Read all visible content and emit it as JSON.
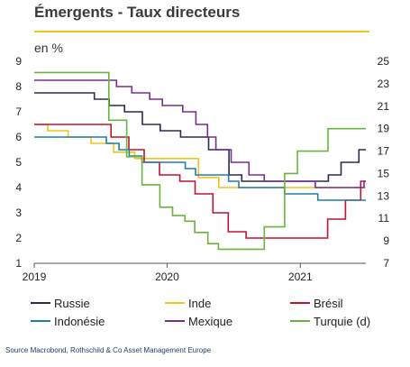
{
  "chart_data": {
    "type": "line",
    "title": "Émergents - Taux directeurs",
    "unit_label": "en %",
    "source": "Source Macrobond, Rothschild & Co Asset Management Europe",
    "x_ticks": [
      "2019",
      "2020",
      "2021"
    ],
    "xlim": [
      "2019-01-01",
      "2021-06-30"
    ],
    "y_left": {
      "range": [
        1,
        9
      ],
      "ticks": [
        "1",
        "2",
        "3",
        "4",
        "5",
        "6",
        "7",
        "8",
        "9"
      ]
    },
    "y_right": {
      "range": [
        7,
        25
      ],
      "ticks": [
        "7",
        "9",
        "11",
        "13",
        "15",
        "17",
        "19",
        "21",
        "23",
        "25"
      ]
    },
    "legend_placement": "bottom",
    "grid": false,
    "series": [
      {
        "name": "Russie",
        "axis": "left",
        "color": "#2e2a4f",
        "step": true,
        "points": [
          [
            "2019-01-01",
            7.75
          ],
          [
            "2019-06-15",
            7.5
          ],
          [
            "2019-07-26",
            7.25
          ],
          [
            "2019-09-06",
            7.0
          ],
          [
            "2019-10-25",
            6.5
          ],
          [
            "2019-12-13",
            6.25
          ],
          [
            "2020-02-07",
            6.0
          ],
          [
            "2020-04-24",
            5.5
          ],
          [
            "2020-06-19",
            4.5
          ],
          [
            "2020-07-24",
            4.25
          ],
          [
            "2021-03-19",
            4.5
          ],
          [
            "2021-04-23",
            5.0
          ],
          [
            "2021-06-11",
            5.5
          ],
          [
            "2021-06-30",
            5.5
          ]
        ]
      },
      {
        "name": "Inde",
        "axis": "left",
        "color": "#f0c419",
        "step": true,
        "points": [
          [
            "2019-01-01",
            6.5
          ],
          [
            "2019-02-07",
            6.25
          ],
          [
            "2019-04-04",
            6.0
          ],
          [
            "2019-06-06",
            5.75
          ],
          [
            "2019-08-07",
            5.4
          ],
          [
            "2019-10-04",
            5.15
          ],
          [
            "2020-03-27",
            4.4
          ],
          [
            "2020-05-22",
            4.0
          ],
          [
            "2021-06-30",
            4.0
          ]
        ]
      },
      {
        "name": "Brésil",
        "axis": "left",
        "color": "#c0142f",
        "step": true,
        "points": [
          [
            "2019-01-01",
            6.5
          ],
          [
            "2019-07-31",
            6.0
          ],
          [
            "2019-09-18",
            5.5
          ],
          [
            "2019-10-30",
            5.0
          ],
          [
            "2019-12-11",
            4.5
          ],
          [
            "2020-02-05",
            4.25
          ],
          [
            "2020-03-18",
            3.75
          ],
          [
            "2020-05-06",
            3.0
          ],
          [
            "2020-06-17",
            2.25
          ],
          [
            "2020-08-05",
            2.0
          ],
          [
            "2021-03-17",
            2.75
          ],
          [
            "2021-05-05",
            3.5
          ],
          [
            "2021-06-16",
            4.25
          ],
          [
            "2021-06-30",
            4.25
          ]
        ]
      },
      {
        "name": "Indonésie",
        "axis": "left",
        "color": "#1f7fa8",
        "step": true,
        "points": [
          [
            "2019-01-01",
            6.0
          ],
          [
            "2019-07-18",
            5.75
          ],
          [
            "2019-08-22",
            5.5
          ],
          [
            "2019-09-19",
            5.25
          ],
          [
            "2019-10-24",
            5.0
          ],
          [
            "2020-02-20",
            4.75
          ],
          [
            "2020-03-19",
            4.5
          ],
          [
            "2020-06-18",
            4.25
          ],
          [
            "2020-07-16",
            4.0
          ],
          [
            "2020-11-19",
            3.75
          ],
          [
            "2021-02-18",
            3.5
          ],
          [
            "2021-06-30",
            3.5
          ]
        ]
      },
      {
        "name": "Mexique",
        "axis": "left",
        "color": "#7b2d8e",
        "step": true,
        "points": [
          [
            "2019-01-01",
            8.25
          ],
          [
            "2019-08-15",
            8.0
          ],
          [
            "2019-09-26",
            7.75
          ],
          [
            "2019-11-14",
            7.5
          ],
          [
            "2019-12-19",
            7.25
          ],
          [
            "2020-02-13",
            7.0
          ],
          [
            "2020-03-20",
            6.5
          ],
          [
            "2020-04-21",
            6.0
          ],
          [
            "2020-05-14",
            5.5
          ],
          [
            "2020-06-25",
            5.0
          ],
          [
            "2020-08-13",
            4.5
          ],
          [
            "2020-09-24",
            4.25
          ],
          [
            "2021-02-11",
            4.0
          ],
          [
            "2021-06-25",
            4.25
          ],
          [
            "2021-06-30",
            4.25
          ]
        ]
      },
      {
        "name": "Turquie (d)",
        "axis": "right",
        "color": "#6bb33e",
        "step": true,
        "points": [
          [
            "2019-01-01",
            24.0
          ],
          [
            "2019-07-25",
            19.75
          ],
          [
            "2019-09-12",
            16.5
          ],
          [
            "2019-10-24",
            14.0
          ],
          [
            "2019-12-12",
            12.0
          ],
          [
            "2020-01-16",
            11.25
          ],
          [
            "2020-02-19",
            10.75
          ],
          [
            "2020-03-17",
            9.75
          ],
          [
            "2020-04-22",
            8.75
          ],
          [
            "2020-05-21",
            8.25
          ],
          [
            "2020-09-24",
            10.25
          ],
          [
            "2020-11-19",
            15.0
          ],
          [
            "2020-12-24",
            17.0
          ],
          [
            "2021-03-18",
            19.0
          ],
          [
            "2021-06-30",
            19.0
          ]
        ]
      }
    ]
  }
}
